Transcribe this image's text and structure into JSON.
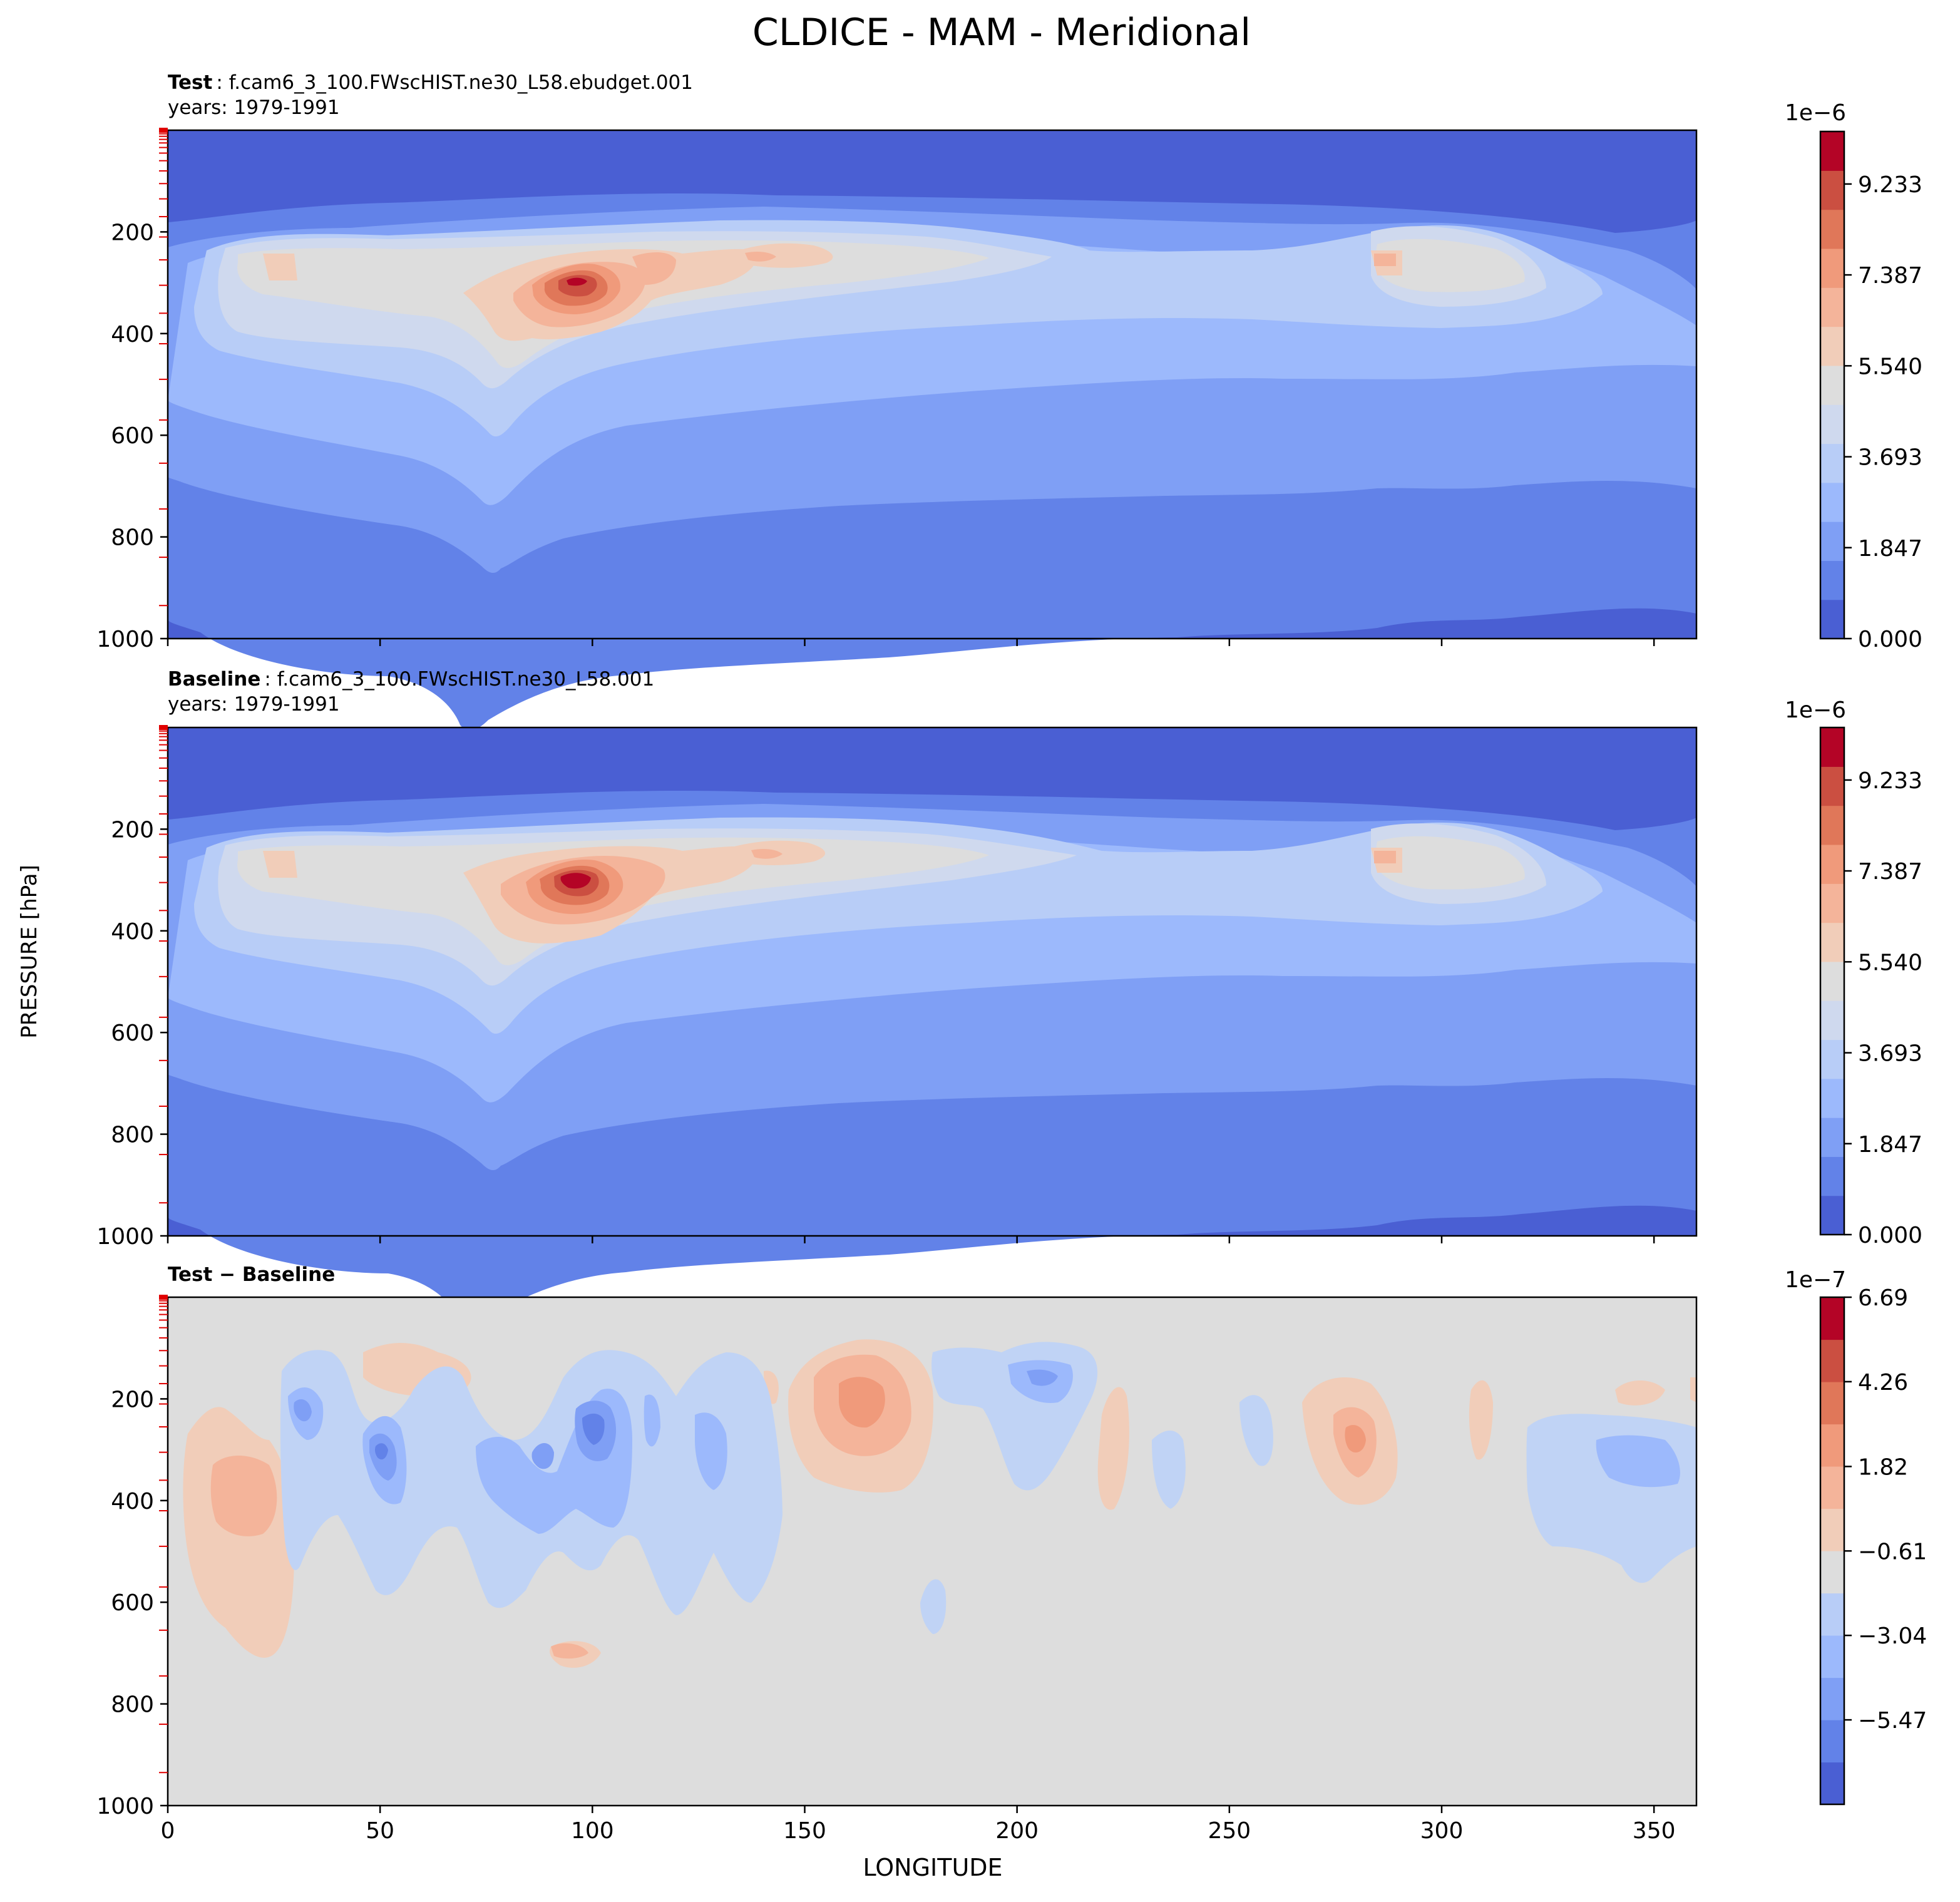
{
  "figure": {
    "title": "CLDICE - MAM - Meridional",
    "ylabel": "PRESSURE [hPa]",
    "xlabel": "LONGITUDE"
  },
  "colors": {
    "seq": [
      "#4a5fd3",
      "#6282e8",
      "#7f9ff5",
      "#9cb9fc",
      "#b8cdf7",
      "#cfd9ee",
      "#dddddd",
      "#f1cdb9",
      "#f4b49a",
      "#f09a7b",
      "#e07759",
      "#cb4f41",
      "#b40426"
    ],
    "diff_bg": "#dddddd"
  },
  "panels": [
    {
      "id": "test",
      "title_bold": "Test",
      "title_rest": ": f.cam6_3_100.FWscHIST.ne30_L58.ebudget.001",
      "subtitle": "years: 1979-1991",
      "colorbar_offset": "1e−6"
    },
    {
      "id": "baseline",
      "title_bold": "Baseline",
      "title_rest": ": f.cam6_3_100.FWscHIST.ne30_L58.001",
      "subtitle": "years: 1979-1991",
      "colorbar_offset": "1e−6"
    },
    {
      "id": "diff",
      "title_bold": "Test − Baseline",
      "title_rest": "",
      "subtitle": "",
      "colorbar_offset": "1e−7"
    }
  ],
  "chart_data": [
    {
      "type": "heatmap",
      "panel": "Test",
      "x_range": [
        0,
        360
      ],
      "y_range": [
        1000,
        0
      ],
      "y_ticks": [
        200,
        400,
        600,
        800,
        1000
      ],
      "x_ticks": [
        0,
        50,
        100,
        150,
        200,
        250,
        300,
        350
      ],
      "x_tick_labels_shown": false,
      "colorbar_ticks": [
        "0.000",
        "1.847",
        "3.693",
        "5.540",
        "7.387",
        "9.233"
      ],
      "colorbar_range": [
        0,
        10.3
      ],
      "levels_x1e6": [
        0.0,
        0.46,
        0.92,
        1.85,
        2.77,
        3.69,
        4.62,
        5.54,
        6.46,
        7.39,
        8.31,
        9.23,
        10.3
      ],
      "features": [
        {
          "desc": "upper-tropospheric ice maximum",
          "lon": 95,
          "p": 300,
          "value_x1e6": 9.5
        },
        {
          "desc": "secondary maximum",
          "lon": 140,
          "p": 255,
          "value_x1e6": 6.5
        },
        {
          "desc": "secondary maximum",
          "lon": 290,
          "p": 255,
          "value_x1e6": 6.5
        }
      ]
    },
    {
      "type": "heatmap",
      "panel": "Baseline",
      "x_range": [
        0,
        360
      ],
      "y_range": [
        1000,
        0
      ],
      "y_ticks": [
        200,
        400,
        600,
        800,
        1000
      ],
      "x_ticks": [
        0,
        50,
        100,
        150,
        200,
        250,
        300,
        350
      ],
      "x_tick_labels_shown": false,
      "colorbar_ticks": [
        "0.000",
        "1.847",
        "3.693",
        "5.540",
        "7.387",
        "9.233"
      ],
      "colorbar_range": [
        0,
        10.3
      ],
      "features": [
        {
          "desc": "upper-tropospheric ice maximum",
          "lon": 95,
          "p": 300,
          "value_x1e6": 9.8
        },
        {
          "desc": "secondary maximum",
          "lon": 140,
          "p": 255,
          "value_x1e6": 6.5
        },
        {
          "desc": "secondary maximum",
          "lon": 290,
          "p": 255,
          "value_x1e6": 6.5
        }
      ]
    },
    {
      "type": "heatmap",
      "panel": "Test − Baseline",
      "x_range": [
        0,
        360
      ],
      "y_range": [
        1000,
        0
      ],
      "y_ticks": [
        200,
        400,
        600,
        800,
        1000
      ],
      "x_ticks": [
        0,
        50,
        100,
        150,
        200,
        250,
        300,
        350
      ],
      "x_tick_labels_shown": true,
      "colorbar_ticks": [
        "−5.47",
        "−3.04",
        "−0.61",
        "1.82",
        "4.26",
        "6.69"
      ],
      "colorbar_range": [
        -7.9,
        6.69
      ],
      "features": [
        {
          "desc": "positive anomaly",
          "lon": 20,
          "p": 380,
          "value_x1e7": 2.5
        },
        {
          "desc": "negative anomaly",
          "lon": 50,
          "p": 320,
          "value_x1e7": -4.5
        },
        {
          "desc": "negative anomaly",
          "lon": 85,
          "p": 330,
          "value_x1e7": -4.0
        },
        {
          "desc": "negative anomaly",
          "lon": 100,
          "p": 280,
          "value_x1e7": -6.0
        },
        {
          "desc": "positive anomaly",
          "lon": 160,
          "p": 210,
          "value_x1e7": 4.0
        },
        {
          "desc": "negative anomaly",
          "lon": 203,
          "p": 200,
          "value_x1e7": -3.5
        },
        {
          "desc": "positive anomaly",
          "lon": 278,
          "p": 280,
          "value_x1e7": 3.5
        },
        {
          "desc": "positive anomaly",
          "lon": 97,
          "p": 720,
          "value_x1e7": 1.5
        }
      ]
    }
  ]
}
